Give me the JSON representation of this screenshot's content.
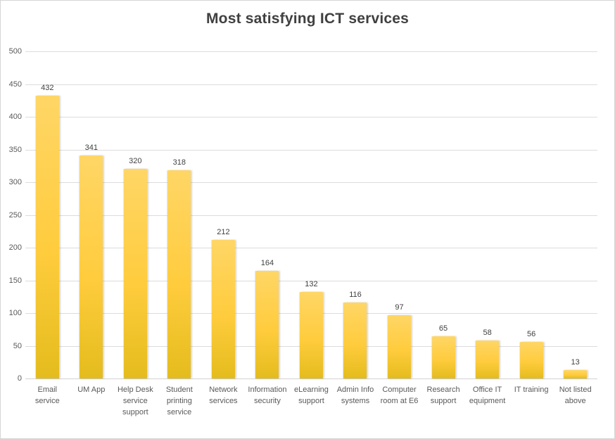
{
  "chart_data": {
    "type": "bar",
    "title": "Most satisfying ICT services",
    "categories": [
      "Email service",
      "UM App",
      "Help Desk service support",
      "Student printing service",
      "Network services",
      "Information security",
      "eLearning support",
      "Admin Info systems",
      "Computer room at E6",
      "Research support",
      "Office IT equipment",
      "IT training",
      "Not listed above"
    ],
    "values": [
      432,
      341,
      320,
      318,
      212,
      164,
      132,
      116,
      97,
      65,
      58,
      56,
      13
    ],
    "value_labels_shown": true,
    "xlabel": "",
    "ylabel": "",
    "ylim": [
      0,
      500
    ],
    "ytick_step": 50,
    "ytick_labels": [
      "500",
      "450",
      "400",
      "350",
      "300",
      "250",
      "200",
      "150",
      "100",
      "50",
      "0"
    ],
    "grid": true,
    "legend": "none",
    "colors": {
      "bar_top": "#ffd666",
      "bar_mid": "#ffcc3d",
      "bar_bottom": "#e4bc1d",
      "gridline": "#dcdcdc",
      "axis_text": "#595959",
      "value_label_text": "#404040",
      "title_text": "#404040",
      "chart_border": "#d6d6d6",
      "background": "#ffffff"
    }
  }
}
